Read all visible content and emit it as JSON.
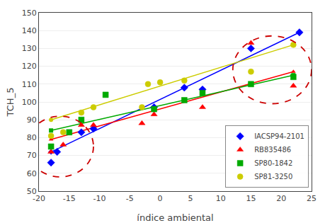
{
  "chart_data": {
    "type": "scatter",
    "title": "",
    "xlabel": "índice ambiental",
    "ylabel": "TCH_5",
    "xlim": [
      -20,
      25
    ],
    "ylim": [
      50,
      150
    ],
    "xticks": [
      -20,
      -15,
      -10,
      -5,
      0,
      5,
      10,
      15,
      20,
      25
    ],
    "yticks": [
      50,
      60,
      70,
      80,
      90,
      100,
      110,
      120,
      130,
      140,
      150
    ],
    "grid": "y",
    "legend": "lower right",
    "series": [
      {
        "name": "IACSP94-2101",
        "color": "#0000FF",
        "marker": "diamond",
        "x": [
          -18,
          -17,
          -13,
          -11,
          -1,
          4,
          7,
          15,
          23
        ],
        "values": [
          66,
          72,
          83,
          85,
          97,
          108,
          107,
          130,
          139
        ],
        "fit": {
          "x": [
            -18,
            23
          ],
          "y": [
            72,
            139
          ]
        }
      },
      {
        "name": "RB835486",
        "color": "#FF0000",
        "marker": "triangle-up",
        "x": [
          -18,
          -16,
          -13,
          -11,
          -3,
          -1,
          7,
          15,
          22
        ],
        "values": [
          72,
          76,
          87,
          87,
          88,
          93,
          97,
          133,
          109
        ],
        "fit": {
          "x": [
            -18,
            22
          ],
          "y": [
            79,
            117
          ]
        }
      },
      {
        "name": "SP80-1842",
        "color": "#00AA00",
        "marker": "square",
        "x": [
          -18,
          -15,
          -13,
          -9,
          -1,
          4,
          7,
          15,
          22
        ],
        "values": [
          75,
          83,
          90,
          104,
          96,
          101,
          105,
          110,
          114
        ],
        "fit": {
          "x": [
            -18,
            22
          ],
          "y": [
            84,
            115
          ]
        }
      },
      {
        "name": "SP81-3250",
        "color": "#CCCC00",
        "marker": "circle",
        "x": [
          -18,
          -16,
          -13,
          -11,
          -3,
          -2,
          0,
          4,
          15,
          22
        ],
        "values": [
          81,
          83,
          94,
          97,
          97,
          110,
          111,
          112,
          117,
          132
        ],
        "fit": {
          "x": [
            -18,
            22
          ],
          "y": [
            90,
            132
          ]
        }
      }
    ],
    "circles": [
      {
        "cx": -16.5,
        "cy": 75,
        "rx": 5.5,
        "ry": 17,
        "color": "#CC0000",
        "line_style": "dash"
      },
      {
        "cx": 18.5,
        "cy": 118,
        "rx": 6.5,
        "ry": 19,
        "color": "#CC0000",
        "line_style": "dash"
      }
    ]
  }
}
